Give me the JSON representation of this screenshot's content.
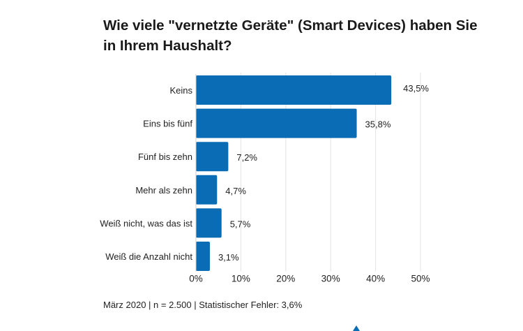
{
  "title": "Wie viele \"vernetzte Geräte\" (Smart Devices) haben Sie in Ihrem Haushalt?",
  "footer": "März 2020 | n = 2.500 | Statistischer Fehler: 3,6%",
  "chart_data": {
    "type": "bar",
    "orientation": "horizontal",
    "title": "Wie viele \"vernetzte Geräte\" (Smart Devices) haben Sie in Ihrem Haushalt?",
    "categories": [
      "Keins",
      "Eins bis fünf",
      "Fünf bis zehn",
      "Mehr als zehn",
      "Weiß nicht, was das ist",
      "Weiß die Anzahl nicht"
    ],
    "values": [
      43.5,
      35.8,
      7.2,
      4.7,
      5.7,
      3.1
    ],
    "value_labels": [
      "43,5%",
      "35,8%",
      "7,2%",
      "4,7%",
      "5,7%",
      "3,1%"
    ],
    "xlim": [
      0,
      50
    ],
    "xticks": [
      0,
      10,
      20,
      30,
      40,
      50
    ],
    "xtick_labels": [
      "0%",
      "10%",
      "20%",
      "30%",
      "40%",
      "50%"
    ],
    "xlabel": "",
    "ylabel": "",
    "grid": true,
    "bar_color": "#0a6cb5"
  }
}
